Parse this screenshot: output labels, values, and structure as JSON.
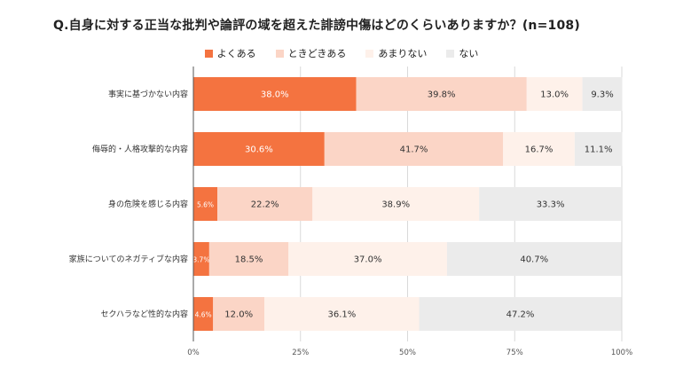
{
  "chart_data": {
    "type": "bar",
    "orientation": "horizontal",
    "stacked": true,
    "title": "Q.自身に対する正当な批判や論評の域を超えた誹謗中傷はどのくらいありますか？(n=108)",
    "categories": [
      "事実に基づかない内容",
      "侮辱的・人格攻撃的な内容",
      "身の危険を感じる内容",
      "家族についてのネガティブな内容",
      "セクハラなど性的な内容"
    ],
    "series": [
      {
        "name": "よくある",
        "color": "#F47340",
        "text_color": "#ffffff",
        "values": [
          38.0,
          30.6,
          5.6,
          3.7,
          4.6
        ],
        "labels": [
          "38.0%",
          "30.6%",
          "5.6%",
          "3.7%",
          "4.6%"
        ]
      },
      {
        "name": "ときどきある",
        "color": "#FBD5C6",
        "text_color": "#333333",
        "values": [
          39.8,
          41.7,
          22.2,
          18.5,
          12.0
        ],
        "labels": [
          "39.8%",
          "41.7%",
          "22.2%",
          "18.5%",
          "12.0%"
        ]
      },
      {
        "name": "あまりない",
        "color": "#FEF1EA",
        "text_color": "#333333",
        "values": [
          13.0,
          16.7,
          38.9,
          37.0,
          36.1
        ],
        "labels": [
          "13.0%",
          "16.7%",
          "38.9%",
          "37.0%",
          "36.1%"
        ]
      },
      {
        "name": "ない",
        "color": "#EBEBEB",
        "text_color": "#333333",
        "values": [
          9.3,
          11.1,
          33.3,
          40.7,
          47.2
        ],
        "labels": [
          "9.3%",
          "11.1%",
          "33.3%",
          "40.7%",
          "47.2%"
        ]
      }
    ],
    "xlim": [
      0,
      100
    ],
    "xticks": [
      0,
      25,
      50,
      75,
      100
    ],
    "xtick_labels": [
      "0%",
      "25%",
      "50%",
      "75%",
      "100%"
    ],
    "grid": true,
    "legend_position": "top-center"
  }
}
